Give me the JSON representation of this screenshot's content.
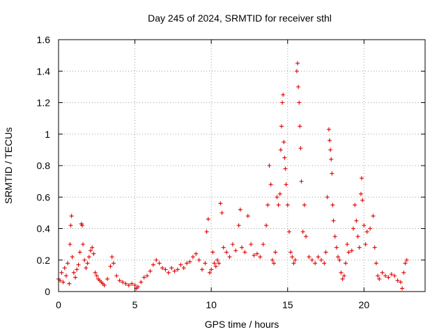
{
  "chart_data": {
    "type": "scatter",
    "title": "Day 245 of 2024, SRMTID for receiver sthl",
    "xlabel": "GPS time / hours",
    "ylabel": "SRMTID / TECUs",
    "xlim": [
      0,
      24
    ],
    "ylim": [
      0,
      1.6
    ],
    "xticks": [
      0,
      5,
      10,
      15,
      20
    ],
    "xtick_labels": [
      "0",
      "5",
      "10",
      "15",
      "20"
    ],
    "yticks": [
      0,
      0.2,
      0.4,
      0.6,
      0.8,
      1.0,
      1.2,
      1.4,
      1.6
    ],
    "ytick_labels": [
      "0",
      "0.2",
      "0.4",
      "0.6",
      "0.8",
      "1",
      "1.2",
      "1.4",
      "1.6"
    ],
    "grid": true,
    "marker": "plus",
    "color": "#e00000",
    "series": [
      {
        "name": "SRMTID",
        "points": [
          [
            0.0,
            0.08
          ],
          [
            0.1,
            0.07
          ],
          [
            0.2,
            0.12
          ],
          [
            0.3,
            0.06
          ],
          [
            0.4,
            0.15
          ],
          [
            0.5,
            0.1
          ],
          [
            0.6,
            0.18
          ],
          [
            0.7,
            0.05
          ],
          [
            0.75,
            0.3
          ],
          [
            0.8,
            0.42
          ],
          [
            0.85,
            0.48
          ],
          [
            0.9,
            0.22
          ],
          [
            1.0,
            0.12
          ],
          [
            1.1,
            0.09
          ],
          [
            1.2,
            0.14
          ],
          [
            1.3,
            0.17
          ],
          [
            1.4,
            0.25
          ],
          [
            1.5,
            0.43
          ],
          [
            1.55,
            0.42
          ],
          [
            1.6,
            0.3
          ],
          [
            1.7,
            0.2
          ],
          [
            1.8,
            0.15
          ],
          [
            1.9,
            0.18
          ],
          [
            2.0,
            0.22
          ],
          [
            2.1,
            0.26
          ],
          [
            2.2,
            0.28
          ],
          [
            2.3,
            0.24
          ],
          [
            2.4,
            0.12
          ],
          [
            2.5,
            0.1
          ],
          [
            2.6,
            0.08
          ],
          [
            2.7,
            0.07
          ],
          [
            2.8,
            0.06
          ],
          [
            2.9,
            0.05
          ],
          [
            3.0,
            0.04
          ],
          [
            3.2,
            0.08
          ],
          [
            3.4,
            0.16
          ],
          [
            3.5,
            0.22
          ],
          [
            3.6,
            0.18
          ],
          [
            3.8,
            0.1
          ],
          [
            4.0,
            0.07
          ],
          [
            4.2,
            0.06
          ],
          [
            4.4,
            0.05
          ],
          [
            4.6,
            0.04
          ],
          [
            4.8,
            0.05
          ],
          [
            5.0,
            0.04
          ],
          [
            5.1,
            0.02
          ],
          [
            5.2,
            0.03
          ],
          [
            5.4,
            0.06
          ],
          [
            5.6,
            0.09
          ],
          [
            5.8,
            0.1
          ],
          [
            6.0,
            0.13
          ],
          [
            6.2,
            0.17
          ],
          [
            6.4,
            0.2
          ],
          [
            6.6,
            0.18
          ],
          [
            6.8,
            0.15
          ],
          [
            7.0,
            0.14
          ],
          [
            7.2,
            0.12
          ],
          [
            7.4,
            0.15
          ],
          [
            7.6,
            0.13
          ],
          [
            7.8,
            0.14
          ],
          [
            8.0,
            0.17
          ],
          [
            8.2,
            0.15
          ],
          [
            8.4,
            0.18
          ],
          [
            8.6,
            0.19
          ],
          [
            8.8,
            0.22
          ],
          [
            9.0,
            0.24
          ],
          [
            9.2,
            0.2
          ],
          [
            9.4,
            0.14
          ],
          [
            9.6,
            0.18
          ],
          [
            9.7,
            0.38
          ],
          [
            9.8,
            0.46
          ],
          [
            9.9,
            0.12
          ],
          [
            10.0,
            0.14
          ],
          [
            10.1,
            0.25
          ],
          [
            10.2,
            0.18
          ],
          [
            10.3,
            0.16
          ],
          [
            10.4,
            0.2
          ],
          [
            10.5,
            0.18
          ],
          [
            10.6,
            0.56
          ],
          [
            10.7,
            0.5
          ],
          [
            10.8,
            0.28
          ],
          [
            11.0,
            0.25
          ],
          [
            11.2,
            0.22
          ],
          [
            11.4,
            0.3
          ],
          [
            11.6,
            0.26
          ],
          [
            11.8,
            0.42
          ],
          [
            11.9,
            0.52
          ],
          [
            12.0,
            0.28
          ],
          [
            12.2,
            0.25
          ],
          [
            12.4,
            0.48
          ],
          [
            12.6,
            0.3
          ],
          [
            12.8,
            0.23
          ],
          [
            13.0,
            0.24
          ],
          [
            13.2,
            0.22
          ],
          [
            13.4,
            0.3
          ],
          [
            13.6,
            0.42
          ],
          [
            13.7,
            0.55
          ],
          [
            13.8,
            0.8
          ],
          [
            13.9,
            0.68
          ],
          [
            14.0,
            0.2
          ],
          [
            14.1,
            0.18
          ],
          [
            14.2,
            0.25
          ],
          [
            14.3,
            0.6
          ],
          [
            14.4,
            0.55
          ],
          [
            14.5,
            0.62
          ],
          [
            14.55,
            0.9
          ],
          [
            14.6,
            1.05
          ],
          [
            14.65,
            1.2
          ],
          [
            14.7,
            1.25
          ],
          [
            14.75,
            0.95
          ],
          [
            14.8,
            0.85
          ],
          [
            14.85,
            0.78
          ],
          [
            14.9,
            0.68
          ],
          [
            15.0,
            0.55
          ],
          [
            15.1,
            0.38
          ],
          [
            15.2,
            0.25
          ],
          [
            15.3,
            0.22
          ],
          [
            15.4,
            0.18
          ],
          [
            15.5,
            0.2
          ],
          [
            15.6,
            1.4
          ],
          [
            15.65,
            1.45
          ],
          [
            15.7,
            1.3
          ],
          [
            15.75,
            1.2
          ],
          [
            15.8,
            1.05
          ],
          [
            15.85,
            0.91
          ],
          [
            15.9,
            0.7
          ],
          [
            16.0,
            0.38
          ],
          [
            16.1,
            0.55
          ],
          [
            16.2,
            0.35
          ],
          [
            16.4,
            0.22
          ],
          [
            16.6,
            0.2
          ],
          [
            16.8,
            0.18
          ],
          [
            17.0,
            0.22
          ],
          [
            17.2,
            0.2
          ],
          [
            17.4,
            0.18
          ],
          [
            17.5,
            0.25
          ],
          [
            17.6,
            0.6
          ],
          [
            17.7,
            1.03
          ],
          [
            17.75,
            0.96
          ],
          [
            17.8,
            0.9
          ],
          [
            17.85,
            0.84
          ],
          [
            17.9,
            0.75
          ],
          [
            17.95,
            0.55
          ],
          [
            18.0,
            0.45
          ],
          [
            18.1,
            0.35
          ],
          [
            18.2,
            0.28
          ],
          [
            18.3,
            0.22
          ],
          [
            18.4,
            0.2
          ],
          [
            18.5,
            0.12
          ],
          [
            18.6,
            0.08
          ],
          [
            18.7,
            0.1
          ],
          [
            18.8,
            0.18
          ],
          [
            18.9,
            0.3
          ],
          [
            19.0,
            0.25
          ],
          [
            19.2,
            0.26
          ],
          [
            19.3,
            0.4
          ],
          [
            19.4,
            0.55
          ],
          [
            19.5,
            0.45
          ],
          [
            19.6,
            0.35
          ],
          [
            19.7,
            0.28
          ],
          [
            19.8,
            0.62
          ],
          [
            19.85,
            0.72
          ],
          [
            19.9,
            0.58
          ],
          [
            20.0,
            0.42
          ],
          [
            20.1,
            0.3
          ],
          [
            20.2,
            0.38
          ],
          [
            20.4,
            0.4
          ],
          [
            20.6,
            0.48
          ],
          [
            20.7,
            0.28
          ],
          [
            20.8,
            0.18
          ],
          [
            20.9,
            0.1
          ],
          [
            21.0,
            0.08
          ],
          [
            21.2,
            0.12
          ],
          [
            21.4,
            0.1
          ],
          [
            21.6,
            0.09
          ],
          [
            21.8,
            0.11
          ],
          [
            22.0,
            0.1
          ],
          [
            22.2,
            0.07
          ],
          [
            22.4,
            0.06
          ],
          [
            22.5,
            0.02
          ],
          [
            22.6,
            0.12
          ],
          [
            22.7,
            0.18
          ],
          [
            22.8,
            0.2
          ]
        ]
      }
    ]
  }
}
